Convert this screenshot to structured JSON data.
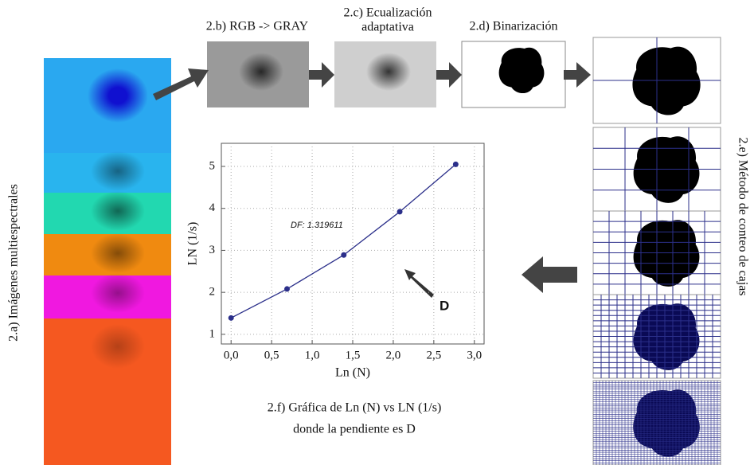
{
  "panels": {
    "a": "2.a) Imágenes multiespectrales",
    "b": "2.b) RGB -> GRAY",
    "c": [
      "2.c) Ecualización",
      "adaptativa"
    ],
    "d": "2.d) Binarización",
    "e": "2.e) Método de conteo de cajas",
    "f": [
      "2.f) Gráfica de Ln (N) vs LN (1/s)",
      "donde la pendiente es D"
    ]
  },
  "chart_data": {
    "type": "line",
    "x_label": "Ln (N)",
    "y_label": "LN (1/s)",
    "x": [
      0.0,
      0.69,
      1.39,
      2.08,
      2.77
    ],
    "series": [
      {
        "color": "#2b2f8a",
        "values": [
          1.39,
          2.08,
          2.89,
          3.92,
          5.05
        ]
      }
    ],
    "xlim": [
      -0.12,
      3.12
    ],
    "ylim": [
      0.77,
      5.55
    ],
    "xticks": [
      {
        "value": 0,
        "label": "0,0"
      },
      {
        "value": 0.5,
        "label": "0,5"
      },
      {
        "value": 1,
        "label": "1,0"
      },
      {
        "value": 1.5,
        "label": "1,5"
      },
      {
        "value": 2,
        "label": "2,0"
      },
      {
        "value": 2.5,
        "label": "2,5"
      },
      {
        "value": 3,
        "label": "3,0"
      }
    ],
    "yticks": [
      1,
      2,
      3,
      4,
      5
    ],
    "grid": true,
    "annotations": [
      "DF: 1.319611",
      "D"
    ]
  }
}
